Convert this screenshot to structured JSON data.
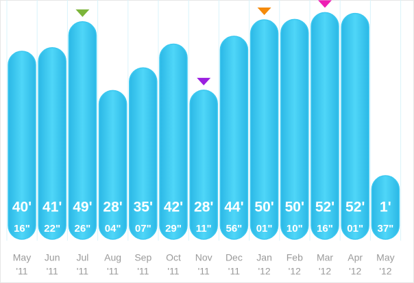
{
  "chart_data": {
    "type": "bar",
    "categories": [
      {
        "month": "May",
        "year": "'11"
      },
      {
        "month": "Jun",
        "year": "'11"
      },
      {
        "month": "Jul",
        "year": "'11"
      },
      {
        "month": "Aug",
        "year": "'11"
      },
      {
        "month": "Sep",
        "year": "'11"
      },
      {
        "month": "Oct",
        "year": "'11"
      },
      {
        "month": "Nov",
        "year": "'11"
      },
      {
        "month": "Dec",
        "year": "'11"
      },
      {
        "month": "Jan",
        "year": "'12"
      },
      {
        "month": "Feb",
        "year": "'12"
      },
      {
        "month": "Mar",
        "year": "'12"
      },
      {
        "month": "Apr",
        "year": "'12"
      },
      {
        "month": "May",
        "year": "'12"
      }
    ],
    "minutes": [
      40,
      41,
      49,
      28,
      35,
      42,
      28,
      44,
      50,
      50,
      52,
      52,
      1
    ],
    "seconds": [
      16,
      22,
      26,
      4,
      7,
      29,
      11,
      56,
      1,
      10,
      16,
      1,
      37
    ],
    "minute_labels": [
      "40'",
      "41'",
      "49'",
      "28'",
      "35'",
      "42'",
      "28'",
      "44'",
      "50'",
      "50'",
      "52'",
      "52'",
      "1'"
    ],
    "second_labels": [
      "16\"",
      "22\"",
      "26\"",
      "04\"",
      "07\"",
      "29\"",
      "11\"",
      "56\"",
      "01\"",
      "10\"",
      "16\"",
      "01\"",
      "37\""
    ],
    "color": "#3cc8f0",
    "markers": [
      {
        "index": 2,
        "color": "#7cb53a"
      },
      {
        "index": 6,
        "color": "#9b1fe0"
      },
      {
        "index": 8,
        "color": "#f58a0a"
      },
      {
        "index": 10,
        "color": "#ee1fb4"
      }
    ]
  }
}
